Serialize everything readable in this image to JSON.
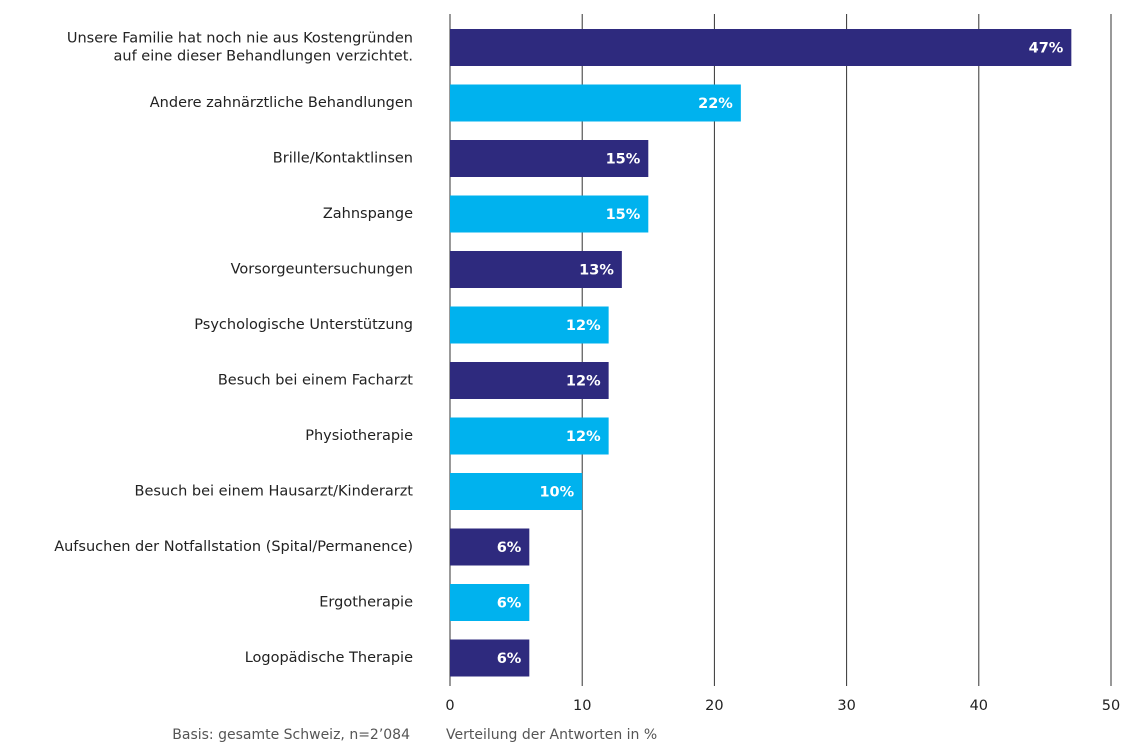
{
  "chart_data": {
    "type": "bar",
    "orientation": "horizontal",
    "categories": [
      "Unsere Familie hat noch nie aus Kostengründen\nauf eine dieser Behandlungen verzichtet.",
      "Andere zahnärztliche Behandlungen",
      "Brille/Kontaktlinsen",
      "Zahnspange",
      "Vorsorgeuntersuchungen",
      "Psychologische Unterstützung",
      "Besuch bei einem Facharzt",
      "Physiotherapie",
      "Besuch bei einem Hausarzt/Kinderarzt",
      "Aufsuchen der Notfallstation (Spital/Permanence)",
      "Ergotherapie",
      "Logopädische Therapie"
    ],
    "values": [
      47,
      22,
      15,
      15,
      13,
      12,
      12,
      12,
      10,
      6,
      6,
      6
    ],
    "value_labels": [
      "47%",
      "22%",
      "15%",
      "15%",
      "13%",
      "12%",
      "12%",
      "12%",
      "10%",
      "6%",
      "6%",
      "6%"
    ],
    "colors": [
      "#2e2a7e",
      "#00b2ee",
      "#2e2a7e",
      "#00b2ee",
      "#2e2a7e",
      "#00b2ee",
      "#2e2a7e",
      "#00b2ee",
      "#00b2ee",
      "#2e2a7e",
      "#00b2ee",
      "#2e2a7e"
    ],
    "xlim": [
      0,
      50
    ],
    "xticks": [
      0,
      10,
      20,
      30,
      40,
      50
    ],
    "grid": true,
    "xlabel": "Verteilung der Antworten in %",
    "note": "Basis: gesamte Schweiz, n=2’084"
  }
}
